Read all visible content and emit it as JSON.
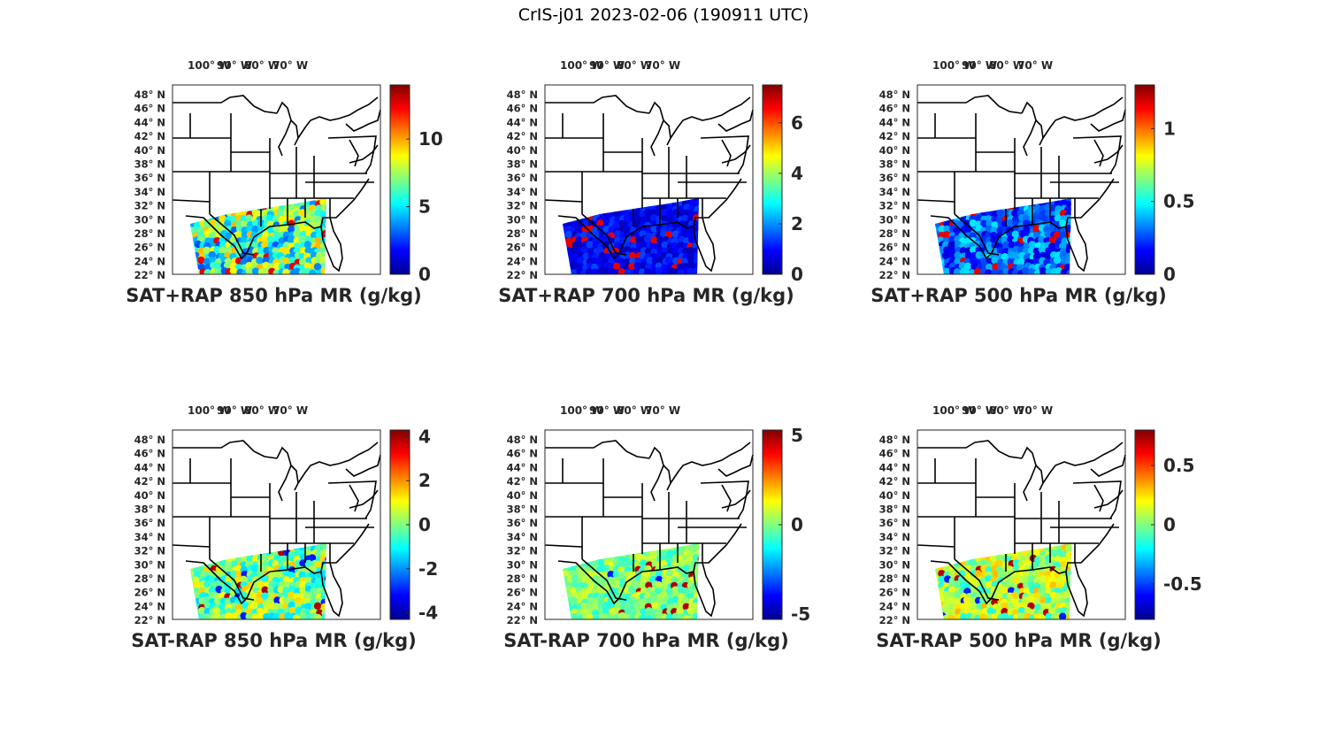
{
  "figure_title": "CrIS-j01 2023-02-06 (190911 UTC)",
  "colormap": [
    "#00008f",
    "#0000ff",
    "#0080ff",
    "#00ffff",
    "#80ff80",
    "#ffff00",
    "#ff8000",
    "#ff0000",
    "#800000"
  ],
  "map_style": {
    "land": "#ffffff",
    "borders": "#000000"
  },
  "lon_ticks": [
    "100° W",
    "90° W",
    "80° W",
    "70° W"
  ],
  "lat_ticks": [
    "48° N",
    "46° N",
    "44° N",
    "42° N",
    "40° N",
    "38° N",
    "36° N",
    "34° N",
    "32° N",
    "30° N",
    "28° N",
    "26° N",
    "24° N",
    "22° N"
  ],
  "panels": [
    {
      "title": "SAT+RAP 850 hPa MR (g/kg)",
      "kind": "total",
      "clim": [
        0,
        14
      ],
      "cb_ticks": [
        {
          "v": 0,
          "l": "0"
        },
        {
          "v": 5,
          "l": "5"
        },
        {
          "v": 10,
          "l": "10"
        }
      ],
      "mean": 0.45,
      "spread": 0.25
    },
    {
      "title": "SAT+RAP 700 hPa MR (g/kg)",
      "kind": "total",
      "clim": [
        0,
        7.5
      ],
      "cb_ticks": [
        {
          "v": 0,
          "l": "0"
        },
        {
          "v": 2,
          "l": "2"
        },
        {
          "v": 4,
          "l": "4"
        },
        {
          "v": 6,
          "l": "6"
        }
      ],
      "mean": 0.12,
      "spread": 0.08
    },
    {
      "title": "SAT+RAP 500 hPa MR (g/kg)",
      "kind": "total",
      "clim": [
        0,
        1.3
      ],
      "cb_ticks": [
        {
          "v": 0,
          "l": "0"
        },
        {
          "v": 0.5,
          "l": "0.5"
        },
        {
          "v": 1,
          "l": "1"
        }
      ],
      "mean": 0.22,
      "spread": 0.15
    },
    {
      "title": "SAT-RAP 850 hPa MR (g/kg)",
      "kind": "diff",
      "clim": [
        -4.3,
        4.3
      ],
      "cb_ticks": [
        {
          "v": -4,
          "l": "-4"
        },
        {
          "v": -2,
          "l": "-2"
        },
        {
          "v": 0,
          "l": "0"
        },
        {
          "v": 2,
          "l": "2"
        },
        {
          "v": 4,
          "l": "4"
        }
      ],
      "mean": 0.5,
      "spread": 0.18
    },
    {
      "title": "SAT-RAP 700 hPa MR (g/kg)",
      "kind": "diff",
      "clim": [
        -5.3,
        5.3
      ],
      "cb_ticks": [
        {
          "v": -5,
          "l": "-5"
        },
        {
          "v": 0,
          "l": "0"
        },
        {
          "v": 5,
          "l": "5"
        }
      ],
      "mean": 0.5,
      "spread": 0.1
    },
    {
      "title": "SAT-RAP 500 hPa MR (g/kg)",
      "kind": "diff",
      "clim": [
        -0.8,
        0.8
      ],
      "cb_ticks": [
        {
          "v": -0.5,
          "l": "-0.5"
        },
        {
          "v": 0,
          "l": "0"
        },
        {
          "v": 0.5,
          "l": "0.5"
        }
      ],
      "mean": 0.55,
      "spread": 0.15
    }
  ]
}
